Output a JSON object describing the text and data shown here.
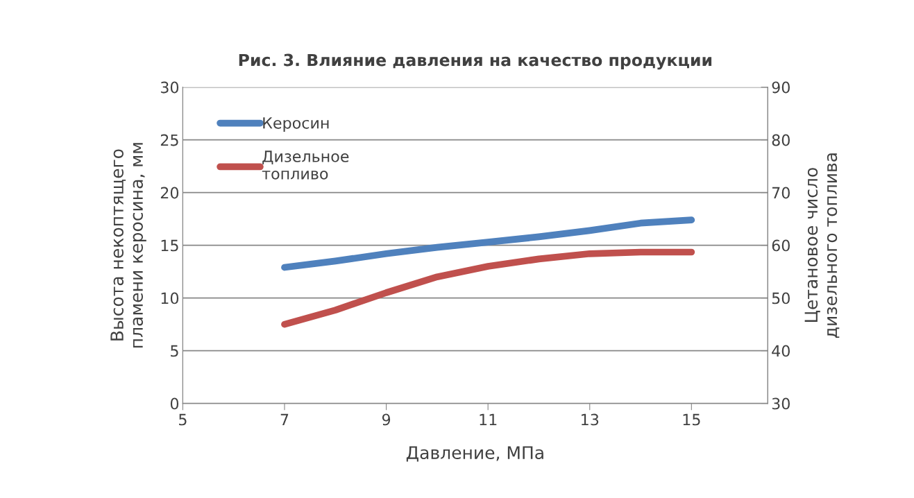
{
  "chart_data": {
    "type": "line",
    "title": "Рис. 3. Влияние давления на качество продукции",
    "xlabel": "Давление, МПа",
    "ylabel": "Высота некоптящего\nпламени керосина, мм",
    "y2label": "Цетановое число\nдизельного топлива",
    "x": [
      7,
      8,
      9,
      10,
      11,
      12,
      13,
      14,
      15
    ],
    "series": [
      {
        "name": "Керосин",
        "color": "#4f81bd",
        "values": [
          12.9,
          13.5,
          14.2,
          14.8,
          15.3,
          15.8,
          16.4,
          17.1,
          17.4
        ]
      },
      {
        "name": "Дизельное\nтопливо",
        "color": "#c0504d",
        "axis": "y2",
        "values": [
          45,
          47.7,
          51,
          54,
          56,
          57.4,
          58.4,
          58.7,
          58.7
        ]
      }
    ],
    "xlim": [
      5,
      16.5
    ],
    "xticks": [
      5,
      7,
      9,
      11,
      13,
      15
    ],
    "ylim": [
      0,
      30
    ],
    "yticks": [
      0,
      5,
      10,
      15,
      20,
      25,
      30
    ],
    "y2lim": [
      30,
      90
    ],
    "y2ticks": [
      30,
      40,
      50,
      60,
      70,
      80,
      90
    ],
    "grid": "y",
    "legend": "top left",
    "marker": "none",
    "line_style": "solid"
  }
}
